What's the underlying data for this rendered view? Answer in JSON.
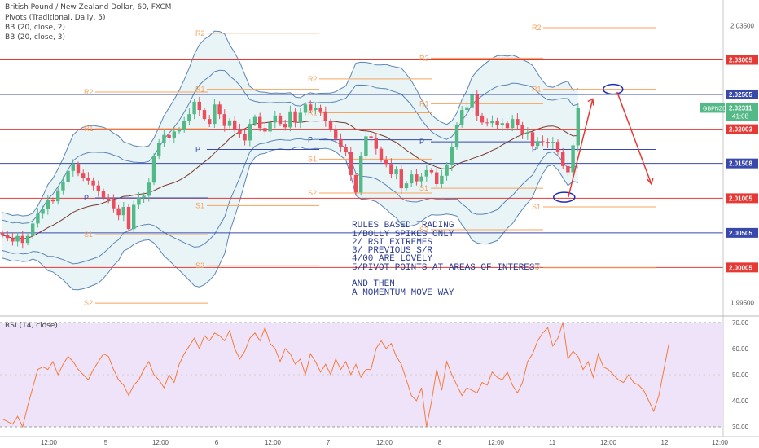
{
  "header": {
    "title": "British Pound / New Zealand Dollar, 60, FXCM",
    "indicators": [
      "Pivots (Traditional, Daily, 5)",
      "BB (20, close, 2)",
      "BB (20, close, 3)"
    ]
  },
  "rsi": {
    "label": "RSI (14, close)",
    "ticks": [
      "70.00",
      "60.00",
      "50.00",
      "40.00",
      "30.00"
    ],
    "values": [
      33,
      32,
      31,
      34,
      30,
      38,
      45,
      52,
      53,
      52,
      55,
      50,
      54,
      57,
      55,
      52,
      50,
      48,
      52,
      55,
      58,
      57,
      52,
      48,
      46,
      42,
      46,
      48,
      52,
      55,
      50,
      48,
      45,
      50,
      47,
      54,
      58,
      61,
      64,
      60,
      65,
      63,
      66,
      65,
      63,
      67,
      60,
      56,
      59,
      64,
      66,
      63,
      68,
      62,
      60,
      55,
      60,
      58,
      54,
      56,
      50,
      58,
      55,
      51,
      54,
      50,
      56,
      52,
      55,
      50,
      54,
      49,
      52,
      52,
      60,
      63,
      60,
      62,
      57,
      54,
      48,
      42,
      40,
      45,
      30,
      40,
      52,
      44,
      55,
      50,
      46,
      42,
      45,
      44,
      43,
      47,
      46,
      51,
      49,
      48,
      51,
      46,
      43,
      47,
      55,
      58,
      63,
      66,
      68,
      61,
      64,
      70,
      56,
      59,
      57,
      52,
      55,
      49,
      58,
      53,
      52,
      50,
      48,
      47,
      50,
      47,
      46,
      44,
      40,
      36,
      42,
      52,
      62
    ]
  },
  "price_axis": {
    "ticks": [
      "2.03500",
      "2.03000",
      "2.02500",
      "2.02000",
      "2.01500",
      "2.01000",
      "2.00500",
      "2.00000",
      "1.99500"
    ],
    "badges": {
      "symbol": "GBPNZD",
      "price": "2.02311",
      "countdown": "41:08",
      "levels": [
        "2.03005",
        "2.02505",
        "2.02003",
        "2.01508",
        "2.01005",
        "2.00505",
        "2.00005"
      ]
    }
  },
  "time_axis": {
    "labels": [
      "12:00",
      "5",
      "12:00",
      "6",
      "12:00",
      "7",
      "12:00",
      "8",
      "12:00",
      "11",
      "12:00",
      "12",
      "12:00"
    ]
  },
  "pivot_labels": {
    "R2": "R2",
    "R1": "R1",
    "P": "P",
    "S1": "S1",
    "S2": "S2"
  },
  "annotation": {
    "lines": [
      "RULES BASED TRADING",
      "1/BOLLY SPIKES ONLY",
      "2/ RSI EXTREMES",
      "3/ PREVIOUS S/R",
      "4/00 ARE LOVELY",
      "5/PIVOT POINTS AT AREAS OF INTEREST",
      "",
      "AND THEN",
      "A MOMENTUM MOVE WAY"
    ]
  },
  "colors": {
    "bull": "#53b987",
    "bear": "#eb4d5c",
    "pivot": "#f7a35c",
    "red_line": "#e53935",
    "blue_line": "#3949ab",
    "band": "#5b86b5",
    "band_fill": "#e4f1f5",
    "ma": "#7b3a2c",
    "rsi_line": "#f57c3c",
    "rsi_bg": "#efe3fa",
    "arrow": "#e53935",
    "ellipse": "#1a2fb8"
  },
  "chart_data": {
    "type": "candlestick",
    "title": "British Pound / New Zealand Dollar, 60, FXCM",
    "y_range": [
      1.9935,
      2.0387
    ],
    "horizontal_lines": {
      "red": [
        2.03005,
        2.02003,
        2.01005,
        2.00005
      ],
      "blue": [
        2.02505,
        2.01508,
        2.00505
      ]
    },
    "current_price": 2.02311,
    "closes": [
      2.0047,
      2.0043,
      2.0038,
      2.0046,
      2.0036,
      2.0046,
      2.0064,
      2.0078,
      2.0085,
      2.0098,
      2.0096,
      2.0112,
      2.0124,
      2.014,
      2.015,
      2.0136,
      2.013,
      2.0126,
      2.0119,
      2.0111,
      2.0101,
      2.0098,
      2.0086,
      2.0076,
      2.0088,
      2.0056,
      2.0091,
      2.0101,
      2.0104,
      2.0123,
      2.0162,
      2.018,
      2.0192,
      2.0188,
      2.0197,
      2.02,
      2.0212,
      2.0222,
      2.024,
      2.0228,
      2.0215,
      2.0208,
      2.0236,
      2.0222,
      2.0205,
      2.0213,
      2.02,
      2.0194,
      2.0184,
      2.0208,
      2.0218,
      2.0202,
      2.0197,
      2.021,
      2.022,
      2.0208,
      2.0203,
      2.0226,
      2.021,
      2.0224,
      2.0236,
      2.0228,
      2.0231,
      2.0226,
      2.0212,
      2.02,
      2.0186,
      2.0174,
      2.0168,
      2.0134,
      2.0109,
      2.0162,
      2.019,
      2.0188,
      2.0172,
      2.0156,
      2.015,
      2.0135,
      2.0142,
      2.0115,
      2.0122,
      2.0135,
      2.0125,
      2.0132,
      2.0141,
      2.0138,
      2.0121,
      2.0133,
      2.0148,
      2.0174,
      2.0207,
      2.0228,
      2.0232,
      2.025,
      2.022,
      2.021,
      2.0209,
      2.0212,
      2.0206,
      2.0209,
      2.0202,
      2.0215,
      2.0206,
      2.0193,
      2.0196,
      2.0176,
      2.0183,
      2.0182,
      2.018,
      2.0182,
      2.0167,
      2.0147,
      2.0138,
      2.0177,
      2.0231
    ]
  }
}
